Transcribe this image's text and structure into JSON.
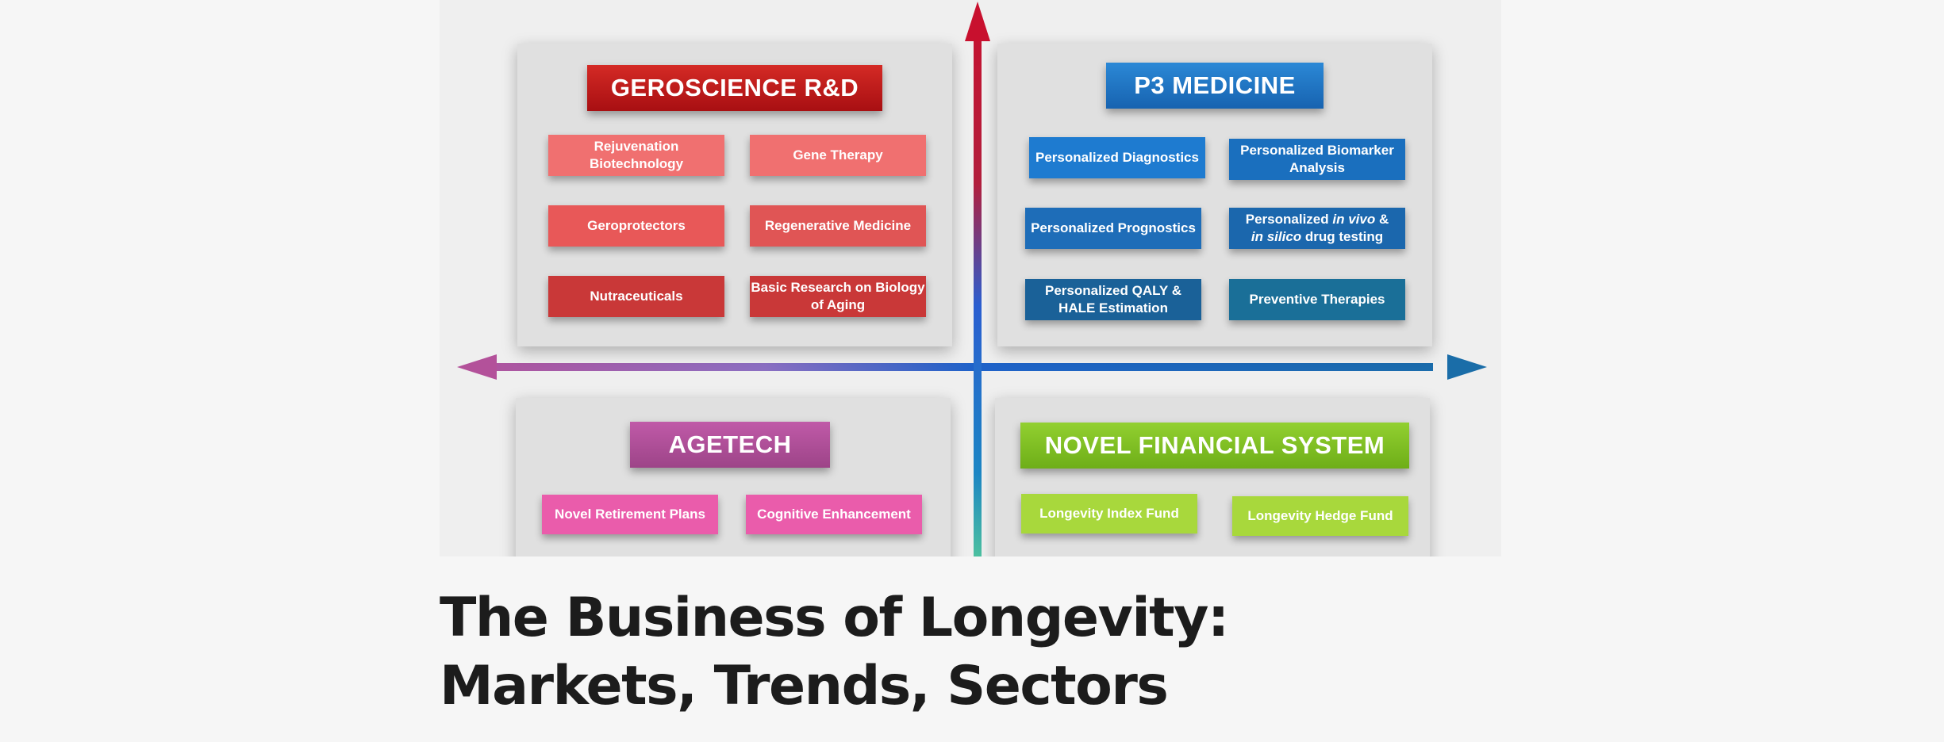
{
  "colors": {
    "geroscience": "#c81f1f",
    "p3": "#1f78c8",
    "agetech": "#b3519a",
    "financial": "#86c41c",
    "axis_red": "#c8102e",
    "axis_blue": "#1f62c9"
  },
  "quadrants": {
    "geroscience": {
      "title": "GEROSCIENCE R&D",
      "items": [
        "Rejuvenation Biotechnology",
        "Gene Therapy",
        "Geroprotectors",
        "Regenerative Medicine",
        "Nutraceuticals",
        "Basic Research on Biology of Aging"
      ]
    },
    "p3": {
      "title": "P3 MEDICINE",
      "items": [
        {
          "pre": "Personalized Diagnostics"
        },
        {
          "pre": "Personalized Biomarker Analysis"
        },
        {
          "pre": "Personalized Prognostics"
        },
        {
          "pre": "Personalized ",
          "em1": "in vivo",
          "mid": " & ",
          "em2": "in silico",
          "post": " drug testing"
        },
        {
          "pre": "Personalized QALY & HALE Estimation"
        },
        {
          "pre": "Preventive Therapies"
        }
      ]
    },
    "agetech": {
      "title": "AGETECH",
      "items": [
        "Novel Retirement Plans",
        "Cognitive Enhancement"
      ]
    },
    "financial": {
      "title": "NOVEL FINANCIAL SYSTEM",
      "items": [
        "Longevity Index Fund",
        "Longevity Hedge Fund"
      ]
    }
  },
  "article": {
    "title": "The Business of Longevity: Markets, Trends, Sectors"
  }
}
